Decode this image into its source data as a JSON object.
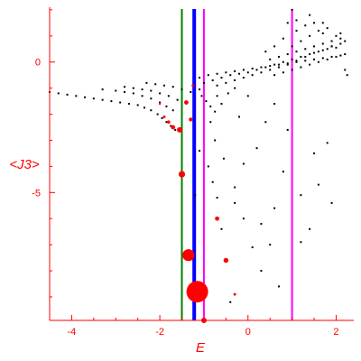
{
  "chart_data": {
    "type": "scatter",
    "xlabel": "E",
    "ylabel": "<J3>",
    "xlim": [
      -4.5,
      2.4
    ],
    "ylim": [
      -9.9,
      2.1
    ],
    "x_ticks": [
      {
        "value": -4,
        "label": "-4"
      },
      {
        "value": -2,
        "label": "-2"
      },
      {
        "value": 0,
        "label": "0"
      },
      {
        "value": 2,
        "label": "2"
      }
    ],
    "y_ticks": [
      {
        "value": 0,
        "label": "0"
      },
      {
        "value": -5,
        "label": "-5"
      }
    ],
    "colors": {
      "axis": "#ff0000",
      "points": "#000000",
      "highlight": "#ff0000",
      "green_line": "#008000",
      "blue_line": "#0000ff",
      "magenta_line": "#ff00ff"
    },
    "vertical_lines": [
      {
        "x": -1.5,
        "color": "green"
      },
      {
        "x": -1.22,
        "color": "blue"
      },
      {
        "x": -1.0,
        "color": "magenta"
      },
      {
        "x": 1.0,
        "color": "magenta"
      }
    ],
    "highlighted_points": [
      {
        "x": -1.15,
        "y": -8.8,
        "size": 4.0
      },
      {
        "x": -1.35,
        "y": -7.4,
        "size": 2.2
      },
      {
        "x": -1.5,
        "y": -4.3,
        "size": 1.2
      },
      {
        "x": -1.55,
        "y": -2.6,
        "size": 1.0
      },
      {
        "x": -1.7,
        "y": -2.5,
        "size": 0.8
      },
      {
        "x": -1.8,
        "y": -2.3,
        "size": 0.6
      },
      {
        "x": -1.9,
        "y": -2.1,
        "size": 0.5
      },
      {
        "x": -1.4,
        "y": -1.55,
        "size": 0.8
      },
      {
        "x": -1.3,
        "y": -2.2,
        "size": 0.7
      },
      {
        "x": -0.7,
        "y": -6.0,
        "size": 0.8
      },
      {
        "x": -0.5,
        "y": -7.6,
        "size": 0.9
      },
      {
        "x": -0.3,
        "y": -8.9,
        "size": 0.5
      },
      {
        "x": -1.0,
        "y": -9.9,
        "size": 1.0
      },
      {
        "x": -2.0,
        "y": -1.6,
        "size": 0.4
      },
      {
        "x": -1.25,
        "y": -0.9,
        "size": 0.5
      }
    ],
    "scatter_points": [
      [
        -4.5,
        -1.15
      ],
      [
        -4.3,
        -1.2
      ],
      [
        -4.1,
        -1.25
      ],
      [
        -3.9,
        -1.3
      ],
      [
        -3.7,
        -1.35
      ],
      [
        -3.5,
        -1.4
      ],
      [
        -3.3,
        -1.45
      ],
      [
        -3.1,
        -1.5
      ],
      [
        -2.9,
        -1.55
      ],
      [
        -2.7,
        -1.6
      ],
      [
        -2.5,
        -1.65
      ],
      [
        -2.35,
        -1.75
      ],
      [
        -2.2,
        -1.85
      ],
      [
        -2.05,
        -2.0
      ],
      [
        -1.95,
        -2.15
      ],
      [
        -1.85,
        -2.3
      ],
      [
        -1.75,
        -2.45
      ],
      [
        -1.65,
        -2.6
      ],
      [
        -3.3,
        -1.05
      ],
      [
        -3.0,
        -1.1
      ],
      [
        -2.8,
        -1.15
      ],
      [
        -2.6,
        -1.2
      ],
      [
        -2.4,
        -1.3
      ],
      [
        -2.2,
        -1.4
      ],
      [
        -2.0,
        -1.55
      ],
      [
        -1.85,
        -1.7
      ],
      [
        -1.7,
        -1.85
      ],
      [
        -2.8,
        -0.95
      ],
      [
        -2.6,
        -1.0
      ],
      [
        -2.4,
        -1.05
      ],
      [
        -2.2,
        -1.1
      ],
      [
        -2.0,
        -1.2
      ],
      [
        -1.8,
        -1.3
      ],
      [
        -1.6,
        -1.45
      ],
      [
        -2.3,
        -0.8
      ],
      [
        -2.1,
        -0.85
      ],
      [
        -1.9,
        -0.9
      ],
      [
        -1.7,
        -0.95
      ],
      [
        -1.5,
        -1.05
      ],
      [
        -1.3,
        -1.15
      ],
      [
        -1.1,
        -1.05
      ],
      [
        -1.05,
        -1.3
      ],
      [
        -0.95,
        -1.5
      ],
      [
        -0.85,
        -1.7
      ],
      [
        -0.75,
        -1.9
      ],
      [
        -1.1,
        -0.6
      ],
      [
        -0.9,
        -0.5
      ],
      [
        -0.7,
        -0.45
      ],
      [
        -0.5,
        -0.4
      ],
      [
        -0.3,
        -0.35
      ],
      [
        -0.1,
        -0.3
      ],
      [
        0.1,
        -0.25
      ],
      [
        0.3,
        -0.2
      ],
      [
        0.5,
        -0.15
      ],
      [
        0.7,
        -0.1
      ],
      [
        0.9,
        -0.05
      ],
      [
        1.1,
        0.0
      ],
      [
        1.3,
        0.05
      ],
      [
        1.5,
        0.1
      ],
      [
        1.7,
        0.15
      ],
      [
        1.9,
        0.2
      ],
      [
        2.1,
        0.25
      ],
      [
        -1.0,
        -0.8
      ],
      [
        -0.8,
        -0.7
      ],
      [
        -0.6,
        -0.6
      ],
      [
        -0.4,
        -0.5
      ],
      [
        -0.2,
        -0.45
      ],
      [
        0.0,
        -0.4
      ],
      [
        0.2,
        -0.3
      ],
      [
        0.4,
        -0.2
      ],
      [
        0.6,
        -0.1
      ],
      [
        0.8,
        0.0
      ],
      [
        1.0,
        0.1
      ],
      [
        1.2,
        0.2
      ],
      [
        1.4,
        0.3
      ],
      [
        1.6,
        0.4
      ],
      [
        1.8,
        0.5
      ],
      [
        2.0,
        0.55
      ],
      [
        -0.7,
        -0.9
      ],
      [
        -0.5,
        -0.8
      ],
      [
        -0.3,
        -0.7
      ],
      [
        -0.1,
        -0.6
      ],
      [
        0.1,
        -0.5
      ],
      [
        0.3,
        -0.4
      ],
      [
        0.5,
        -0.3
      ],
      [
        0.7,
        -0.2
      ],
      [
        0.9,
        -0.1
      ],
      [
        1.1,
        0.05
      ],
      [
        1.3,
        0.2
      ],
      [
        1.5,
        0.35
      ],
      [
        1.7,
        0.45
      ],
      [
        1.9,
        0.6
      ],
      [
        2.1,
        0.7
      ],
      [
        0.5,
        0.1
      ],
      [
        0.7,
        0.2
      ],
      [
        0.9,
        0.3
      ],
      [
        1.1,
        0.4
      ],
      [
        1.3,
        0.5
      ],
      [
        1.5,
        0.6
      ],
      [
        1.7,
        0.7
      ],
      [
        1.9,
        0.8
      ],
      [
        2.1,
        0.9
      ],
      [
        0.6,
        -0.5
      ],
      [
        0.8,
        -0.4
      ],
      [
        1.0,
        -0.3
      ],
      [
        1.2,
        -0.2
      ],
      [
        1.4,
        -0.1
      ],
      [
        1.6,
        0.0
      ],
      [
        1.8,
        0.1
      ],
      [
        2.0,
        0.2
      ],
      [
        2.2,
        0.3
      ],
      [
        1.0,
        0.6
      ],
      [
        1.2,
        0.8
      ],
      [
        1.4,
        1.0
      ],
      [
        1.6,
        1.2
      ],
      [
        1.8,
        1.3
      ],
      [
        2.0,
        1.0
      ],
      [
        2.2,
        0.8
      ],
      [
        0.8,
        0.9
      ],
      [
        1.1,
        1.2
      ],
      [
        1.3,
        1.4
      ],
      [
        1.5,
        1.5
      ],
      [
        1.7,
        1.1
      ],
      [
        1.9,
        0.6
      ],
      [
        2.1,
        1.1
      ],
      [
        2.2,
        -0.3
      ],
      [
        2.25,
        -0.5
      ],
      [
        1.0,
        2.0
      ],
      [
        1.1,
        1.6
      ],
      [
        1.4,
        1.8
      ],
      [
        1.7,
        1.5
      ],
      [
        0.9,
        1.5
      ],
      [
        0.6,
        0.6
      ],
      [
        0.4,
        0.4
      ],
      [
        -0.7,
        -1.3
      ],
      [
        -0.6,
        -1.6
      ],
      [
        -0.45,
        -1.2
      ],
      [
        -0.3,
        -1.0
      ],
      [
        -0.85,
        -2.3
      ],
      [
        -0.75,
        -3.0
      ],
      [
        -0.55,
        -3.7
      ],
      [
        -0.8,
        -4.6
      ],
      [
        -0.7,
        -5.2
      ],
      [
        -0.3,
        -4.8
      ],
      [
        -0.1,
        -3.9
      ],
      [
        0.2,
        -3.3
      ],
      [
        0.4,
        -2.3
      ],
      [
        0.6,
        -1.6
      ],
      [
        -1.1,
        -3.4
      ],
      [
        -0.9,
        -4.0
      ],
      [
        -1.2,
        -5.1
      ],
      [
        0.3,
        -6.2
      ],
      [
        0.6,
        -5.6
      ],
      [
        0.8,
        -4.2
      ],
      [
        1.2,
        -5.1
      ],
      [
        1.5,
        -3.5
      ],
      [
        1.6,
        -4.7
      ],
      [
        1.9,
        -5.4
      ],
      [
        1.4,
        -6.4
      ],
      [
        0.9,
        -2.6
      ],
      [
        -0.2,
        -2.1
      ],
      [
        -0.1,
        -6.0
      ],
      [
        0.1,
        -7.1
      ],
      [
        0.3,
        -8.0
      ],
      [
        -0.6,
        -6.4
      ],
      [
        -0.3,
        -5.4
      ],
      [
        0.5,
        -7.0
      ],
      [
        1.2,
        -6.9
      ],
      [
        1.8,
        -3.1
      ],
      [
        0.0,
        -1.3
      ],
      [
        -0.4,
        -9.2
      ],
      [
        0.7,
        -8.6
      ]
    ]
  }
}
